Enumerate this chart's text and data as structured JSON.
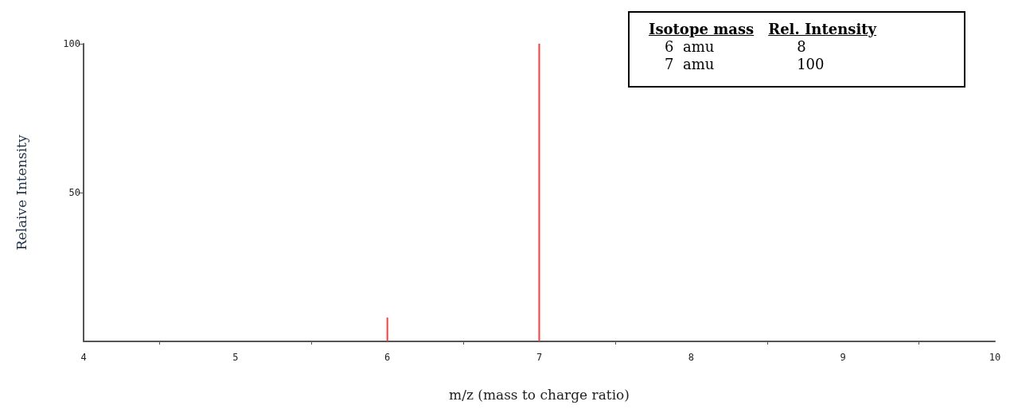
{
  "chart_data": {
    "type": "bar",
    "xlabel": "m/z (mass to charge ratio)",
    "ylabel": "Relaive Intensity",
    "x": [
      6,
      7
    ],
    "values": [
      8,
      100
    ],
    "color": "#ff3b3b",
    "xlim": [
      4,
      10
    ],
    "xticks": [
      4,
      {
        "value": 4.5,
        "label": null
      },
      5,
      {
        "value": 5.5,
        "label": null
      },
      6,
      {
        "value": 6.5,
        "label": null
      },
      7,
      {
        "value": 7.5,
        "label": null
      },
      8,
      {
        "value": 8.5,
        "label": null
      },
      9,
      {
        "value": 9.5,
        "label": null
      },
      10
    ],
    "ylim": [
      0,
      100
    ],
    "yticks": [
      50,
      100
    ],
    "grid": false,
    "annotations": [
      "Isotope mass",
      "Rel. Intensity",
      "6  amu",
      "8",
      "7  amu",
      "100"
    ]
  }
}
